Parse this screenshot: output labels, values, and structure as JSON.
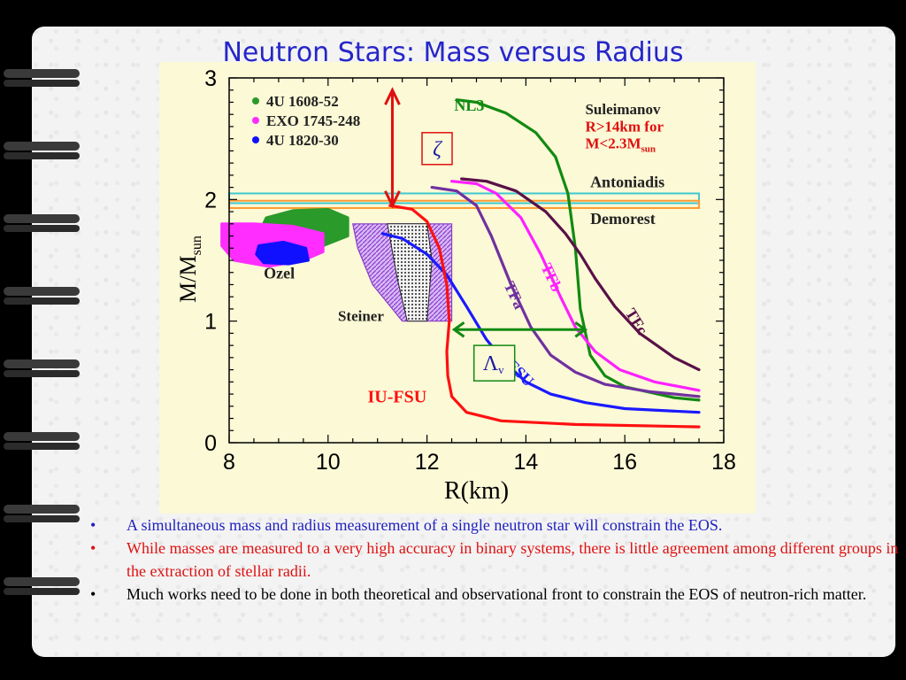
{
  "title": "Neutron Stars: Mass versus Radius",
  "bullets": [
    {
      "text": "A simultaneous mass and radius measurement of a single neutron star will constrain the EOS.",
      "color": "#2020c0"
    },
    {
      "text": "While masses are measured to a very high accuracy in binary systems,  there is little agreement among different groups in the extraction of stellar radii.",
      "color": "#e01010"
    },
    {
      "text": "Much works need to be done in both theoretical and observational front to constrain the EOS of neutron-rich matter.",
      "color": "#000000"
    }
  ],
  "bullet_mark": "•",
  "chart_data": {
    "type": "line",
    "xlabel": "R(km)",
    "ylabel": "M/M",
    "ylabel_sub": "sun",
    "xlim": [
      8,
      18
    ],
    "ylim": [
      0,
      3
    ],
    "xticks": [
      "8",
      "10",
      "12",
      "14",
      "16",
      "18"
    ],
    "yticks": [
      "0",
      "1",
      "2",
      "3"
    ],
    "legend": [
      {
        "name": "4U 1608-52",
        "color": "#2a9a2a"
      },
      {
        "name": "EXO 1745-248",
        "color": "#ff2dff"
      },
      {
        "name": "4U 1820-30",
        "color": "#1010ff"
      }
    ],
    "series": [
      {
        "name": "NL3",
        "color": "#128a12",
        "x": [
          12.6,
          13.0,
          13.6,
          14.2,
          14.6,
          14.85,
          15.0,
          15.1,
          15.3,
          15.6,
          16.0,
          17.0,
          17.5
        ],
        "y": [
          2.82,
          2.8,
          2.71,
          2.55,
          2.35,
          2.05,
          1.6,
          1.1,
          0.72,
          0.55,
          0.46,
          0.37,
          0.35
        ]
      },
      {
        "name": "TFc",
        "color": "#5a1048",
        "x": [
          12.7,
          13.2,
          13.8,
          14.4,
          14.8,
          15.1,
          15.4,
          15.8,
          16.3,
          17.0,
          17.5
        ],
        "y": [
          2.17,
          2.15,
          2.07,
          1.9,
          1.72,
          1.55,
          1.35,
          1.12,
          0.9,
          0.7,
          0.6
        ]
      },
      {
        "name": "TFb",
        "color": "#ff20ff",
        "x": [
          12.5,
          13.0,
          13.4,
          13.9,
          14.3,
          14.7,
          15.0,
          15.4,
          15.9,
          16.6,
          17.5
        ],
        "y": [
          2.15,
          2.13,
          2.05,
          1.85,
          1.55,
          1.2,
          0.95,
          0.75,
          0.6,
          0.5,
          0.43
        ]
      },
      {
        "name": "TFa",
        "color": "#7030a0",
        "x": [
          12.1,
          12.6,
          13.0,
          13.3,
          13.7,
          14.1,
          14.5,
          15.0,
          15.6,
          16.5,
          17.5
        ],
        "y": [
          2.1,
          2.07,
          1.95,
          1.7,
          1.3,
          0.95,
          0.72,
          0.58,
          0.48,
          0.42,
          0.38
        ]
      },
      {
        "name": "FSU",
        "color": "#1a1aff",
        "x": [
          11.1,
          11.5,
          12.0,
          12.4,
          12.8,
          13.2,
          13.6,
          14.0,
          14.5,
          15.2,
          16.0,
          17.5
        ],
        "y": [
          1.72,
          1.68,
          1.55,
          1.38,
          1.12,
          0.85,
          0.65,
          0.5,
          0.4,
          0.33,
          0.28,
          0.25
        ]
      },
      {
        "name": "IU-FSU",
        "color": "#ff1010",
        "x": [
          11.25,
          11.7,
          12.0,
          12.25,
          12.4,
          12.45,
          12.4,
          12.42,
          12.5,
          12.8,
          13.5,
          15.0,
          17.5
        ],
        "y": [
          1.95,
          1.92,
          1.82,
          1.6,
          1.3,
          1.0,
          0.75,
          0.55,
          0.38,
          0.25,
          0.18,
          0.15,
          0.13
        ]
      }
    ],
    "regions": [
      {
        "name": "Antoniadis",
        "color": "#40c8d0",
        "y": [
          1.97,
          2.05
        ]
      },
      {
        "name": "Demorest",
        "color": "#ff9a30",
        "y": [
          1.93,
          1.99
        ]
      },
      {
        "name": "Suleimanov R>14km for M<2.3M",
        "sub": "sun"
      },
      {
        "name": "Ozel"
      },
      {
        "name": "Steiner"
      }
    ],
    "annotations": [
      {
        "label": "ζ",
        "color": "#e01010"
      },
      {
        "label": "Λ",
        "sub": "v",
        "color": "#128a12"
      }
    ],
    "grid": false
  }
}
